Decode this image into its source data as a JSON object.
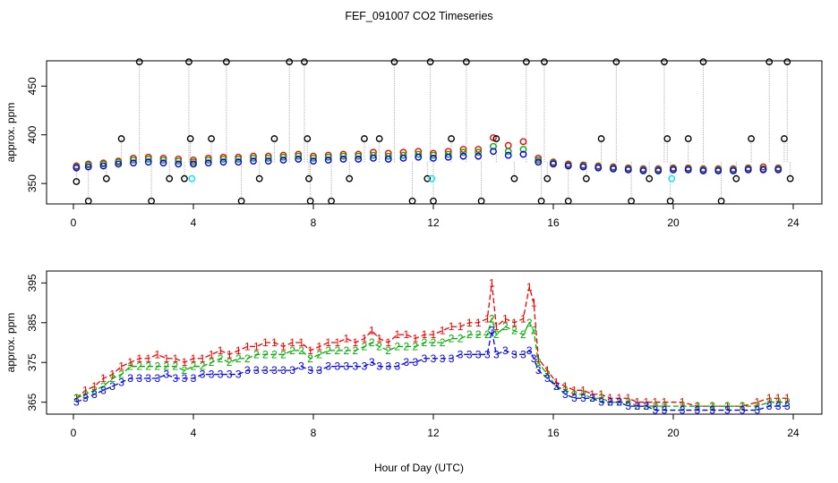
{
  "title": "FEF_091007  CO2 Timeseries",
  "xlabel": "Hour of Day (UTC)",
  "colors": {
    "line1": "#ff0000",
    "line2": "#00b000",
    "line3": "#0000ff",
    "spike": "#000000",
    "reference": "#00e5ee"
  },
  "chart_data": [
    {
      "type": "scatter",
      "ylabel": "approx. ppm",
      "xlim": [
        0,
        24
      ],
      "ylim": [
        329,
        476
      ],
      "x_ticks": [
        "0",
        "4",
        "8",
        "12",
        "16",
        "20",
        "24"
      ],
      "y_ticks": [
        "350",
        "400",
        "450"
      ],
      "grid": false,
      "series": [
        {
          "name": "",
          "color": "#ff0000",
          "x": [
            0.1,
            0.5,
            1.0,
            1.5,
            2.0,
            2.5,
            3.0,
            3.5,
            4.0,
            4.5,
            5.0,
            5.5,
            6.0,
            6.5,
            7.0,
            7.5,
            8.0,
            8.5,
            9.0,
            9.5,
            10.0,
            10.5,
            11.0,
            11.5,
            12.0,
            12.5,
            13.0,
            13.5,
            14.0,
            14.5,
            15.0,
            15.5,
            16.0,
            16.5,
            17.0,
            17.5,
            18.0,
            18.5,
            19.0,
            19.5,
            20.0,
            20.5,
            21.0,
            21.5,
            22.0,
            22.5,
            23.0,
            23.5
          ],
          "y": [
            368,
            370,
            371,
            373,
            376,
            377,
            376,
            375,
            374,
            376,
            377,
            377,
            378,
            378,
            379,
            380,
            378,
            379,
            380,
            380,
            382,
            381,
            382,
            383,
            381,
            383,
            385,
            385,
            397,
            389,
            393,
            376,
            372,
            370,
            369,
            368,
            367,
            366,
            365,
            365,
            366,
            366,
            365,
            365,
            365,
            366,
            367,
            366
          ]
        },
        {
          "name": "",
          "color": "#00b000",
          "x": [
            0.1,
            0.5,
            1.0,
            1.5,
            2.0,
            2.5,
            3.0,
            3.5,
            4.0,
            4.5,
            5.0,
            5.5,
            6.0,
            6.5,
            7.0,
            7.5,
            8.0,
            8.5,
            9.0,
            9.5,
            10.0,
            10.5,
            11.0,
            11.5,
            12.0,
            12.5,
            13.0,
            13.5,
            14.0,
            14.5,
            15.0,
            15.5,
            16.0,
            16.5,
            17.0,
            17.5,
            18.0,
            18.5,
            19.0,
            19.5,
            20.0,
            20.5,
            21.0,
            21.5,
            22.0,
            22.5,
            23.0,
            23.5
          ],
          "y": [
            367,
            369,
            370,
            372,
            374,
            375,
            374,
            373,
            372,
            374,
            375,
            375,
            376,
            376,
            377,
            378,
            376,
            377,
            378,
            378,
            379,
            378,
            379,
            380,
            379,
            380,
            382,
            382,
            388,
            383,
            385,
            374,
            371,
            369,
            368,
            367,
            366,
            365,
            364,
            364,
            365,
            365,
            364,
            364,
            364,
            365,
            365,
            365
          ]
        },
        {
          "name": "",
          "color": "#0000ff",
          "x": [
            0.1,
            0.5,
            1.0,
            1.5,
            2.0,
            2.5,
            3.0,
            3.5,
            4.0,
            4.5,
            5.0,
            5.5,
            6.0,
            6.5,
            7.0,
            7.5,
            8.0,
            8.5,
            9.0,
            9.5,
            10.0,
            10.5,
            11.0,
            11.5,
            12.0,
            12.5,
            13.0,
            13.5,
            14.0,
            14.5,
            15.0,
            15.5,
            16.0,
            16.5,
            17.0,
            17.5,
            18.0,
            18.5,
            19.0,
            19.5,
            20.0,
            20.5,
            21.0,
            21.5,
            22.0,
            22.5,
            23.0,
            23.5
          ],
          "y": [
            366,
            367,
            368,
            370,
            371,
            372,
            371,
            370,
            370,
            371,
            372,
            372,
            373,
            373,
            374,
            375,
            373,
            374,
            375,
            375,
            376,
            375,
            376,
            377,
            376,
            377,
            378,
            378,
            383,
            379,
            380,
            372,
            370,
            368,
            367,
            366,
            365,
            364,
            363,
            363,
            364,
            364,
            363,
            363,
            363,
            364,
            364,
            364
          ]
        },
        {
          "name": "",
          "color": "#000000",
          "x": [
            0.1,
            0.5,
            1.1,
            1.6,
            2.2,
            2.6,
            3.2,
            3.7,
            3.85,
            3.9,
            4.6,
            5.1,
            5.6,
            6.2,
            6.7,
            7.2,
            7.7,
            7.8,
            7.85,
            7.9,
            8.6,
            9.2,
            9.7,
            10.2,
            10.7,
            11.3,
            11.8,
            11.9,
            12.0,
            12.6,
            13.1,
            13.6,
            14.1,
            14.7,
            15.1,
            15.6,
            15.7,
            15.8,
            16.5,
            17.1,
            17.6,
            18.1,
            18.6,
            19.2,
            19.7,
            19.8,
            19.9,
            20.5,
            21.0,
            21.6,
            22.1,
            22.6,
            23.2,
            23.7,
            23.8,
            23.9
          ],
          "y": [
            352,
            332,
            355,
            396,
            475,
            332,
            355,
            355,
            475,
            396,
            396,
            475,
            332,
            355,
            396,
            475,
            475,
            396,
            355,
            332,
            332,
            355,
            396,
            396,
            475,
            332,
            355,
            475,
            332,
            396,
            475,
            332,
            396,
            355,
            475,
            332,
            475,
            355,
            332,
            355,
            396,
            475,
            332,
            355,
            475,
            396,
            332,
            396,
            475,
            332,
            355,
            396,
            475,
            396,
            475,
            355
          ]
        },
        {
          "name": "",
          "color": "#00e5ee",
          "x": [
            3.95,
            11.95,
            19.95
          ],
          "y": [
            355,
            355,
            355
          ]
        }
      ]
    },
    {
      "type": "line",
      "ylabel": "approx. ppm",
      "xlim": [
        0,
        24
      ],
      "ylim": [
        362,
        398
      ],
      "x_ticks": [
        "0",
        "4",
        "8",
        "12",
        "16",
        "20",
        "24"
      ],
      "y_ticks": [
        "365",
        "375",
        "385",
        "395"
      ],
      "grid": false,
      "series": [
        {
          "name": "1",
          "color": "#ff0000",
          "x": [
            0.1,
            0.4,
            0.7,
            1.0,
            1.3,
            1.6,
            1.9,
            2.2,
            2.5,
            2.8,
            3.1,
            3.4,
            3.7,
            4.0,
            4.3,
            4.6,
            4.9,
            5.2,
            5.5,
            5.8,
            6.1,
            6.4,
            6.7,
            7.0,
            7.3,
            7.6,
            7.9,
            8.2,
            8.5,
            8.8,
            9.1,
            9.4,
            9.7,
            9.95,
            10.2,
            10.5,
            10.8,
            11.1,
            11.4,
            11.7,
            12.0,
            12.3,
            12.6,
            12.9,
            13.2,
            13.5,
            13.8,
            13.95,
            14.1,
            14.4,
            14.7,
            15.0,
            15.2,
            15.35,
            15.5,
            15.8,
            16.1,
            16.4,
            16.7,
            17.0,
            17.3,
            17.6,
            17.9,
            18.2,
            18.5,
            18.8,
            19.1,
            19.4,
            19.7,
            20.3,
            20.8,
            21.3,
            21.8,
            22.3,
            22.8,
            23.2,
            23.5,
            23.8
          ],
          "y": [
            366,
            368,
            369,
            371,
            372,
            374,
            375,
            376,
            376,
            377,
            376,
            376,
            375,
            376,
            376,
            377,
            378,
            377,
            378,
            379,
            379,
            380,
            380,
            379,
            380,
            380,
            378,
            379,
            380,
            380,
            381,
            380,
            381,
            383,
            381,
            380,
            382,
            382,
            381,
            382,
            382,
            383,
            384,
            384,
            385,
            385,
            386,
            395,
            384,
            386,
            385,
            386,
            394,
            390,
            376,
            373,
            370,
            369,
            368,
            368,
            367,
            367,
            366,
            366,
            366,
            365,
            365,
            365,
            365,
            365,
            364,
            364,
            364,
            364,
            365,
            366,
            366,
            366
          ]
        },
        {
          "name": "2",
          "color": "#00b000",
          "x": [
            0.1,
            0.4,
            0.7,
            1.0,
            1.3,
            1.6,
            1.9,
            2.2,
            2.5,
            2.8,
            3.1,
            3.4,
            3.7,
            4.0,
            4.3,
            4.6,
            4.9,
            5.2,
            5.5,
            5.8,
            6.1,
            6.4,
            6.7,
            7.0,
            7.3,
            7.6,
            7.9,
            8.2,
            8.5,
            8.8,
            9.1,
            9.4,
            9.7,
            9.95,
            10.2,
            10.5,
            10.8,
            11.1,
            11.4,
            11.7,
            12.0,
            12.3,
            12.6,
            12.9,
            13.2,
            13.5,
            13.8,
            13.95,
            14.1,
            14.4,
            14.7,
            15.0,
            15.2,
            15.35,
            15.5,
            15.8,
            16.1,
            16.4,
            16.7,
            17.0,
            17.3,
            17.6,
            17.9,
            18.2,
            18.5,
            18.8,
            19.1,
            19.4,
            19.7,
            20.3,
            20.8,
            21.3,
            21.8,
            22.3,
            22.8,
            23.2,
            23.5,
            23.8
          ],
          "y": [
            366,
            367,
            368,
            369,
            371,
            372,
            374,
            374,
            374,
            374,
            374,
            374,
            373,
            374,
            374,
            375,
            376,
            375,
            376,
            376,
            377,
            377,
            377,
            377,
            378,
            378,
            376,
            377,
            378,
            378,
            378,
            378,
            379,
            380,
            379,
            378,
            379,
            379,
            379,
            380,
            380,
            380,
            381,
            381,
            382,
            382,
            382,
            386,
            382,
            384,
            383,
            382,
            385,
            383,
            375,
            372,
            369,
            368,
            367,
            367,
            366,
            366,
            365,
            365,
            365,
            364,
            364,
            364,
            364,
            364,
            364,
            364,
            364,
            364,
            364,
            365,
            365,
            365
          ]
        },
        {
          "name": "3",
          "color": "#0000ff",
          "x": [
            0.1,
            0.4,
            0.7,
            1.0,
            1.3,
            1.6,
            1.9,
            2.2,
            2.5,
            2.8,
            3.1,
            3.4,
            3.7,
            4.0,
            4.3,
            4.6,
            4.9,
            5.2,
            5.5,
            5.8,
            6.1,
            6.4,
            6.7,
            7.0,
            7.3,
            7.6,
            7.9,
            8.2,
            8.5,
            8.8,
            9.1,
            9.4,
            9.7,
            9.95,
            10.2,
            10.5,
            10.8,
            11.1,
            11.4,
            11.7,
            12.0,
            12.3,
            12.6,
            12.9,
            13.2,
            13.5,
            13.8,
            13.95,
            14.1,
            14.4,
            14.7,
            15.0,
            15.2,
            15.35,
            15.5,
            15.8,
            16.1,
            16.4,
            16.7,
            17.0,
            17.3,
            17.6,
            17.9,
            18.2,
            18.5,
            18.8,
            19.1,
            19.4,
            19.7,
            20.3,
            20.8,
            21.3,
            21.8,
            22.3,
            22.8,
            23.2,
            23.5,
            23.8
          ],
          "y": [
            365,
            366,
            367,
            368,
            369,
            370,
            371,
            371,
            371,
            371,
            372,
            371,
            371,
            371,
            372,
            372,
            372,
            372,
            372,
            373,
            373,
            373,
            373,
            373,
            373,
            374,
            373,
            373,
            374,
            374,
            374,
            374,
            374,
            375,
            374,
            374,
            374,
            375,
            375,
            376,
            376,
            376,
            376,
            377,
            377,
            377,
            377,
            383,
            377,
            378,
            377,
            377,
            378,
            376,
            373,
            371,
            369,
            367,
            366,
            366,
            366,
            365,
            365,
            365,
            364,
            364,
            364,
            363,
            363,
            363,
            363,
            363,
            363,
            363,
            363,
            364,
            364,
            364
          ]
        }
      ]
    }
  ]
}
